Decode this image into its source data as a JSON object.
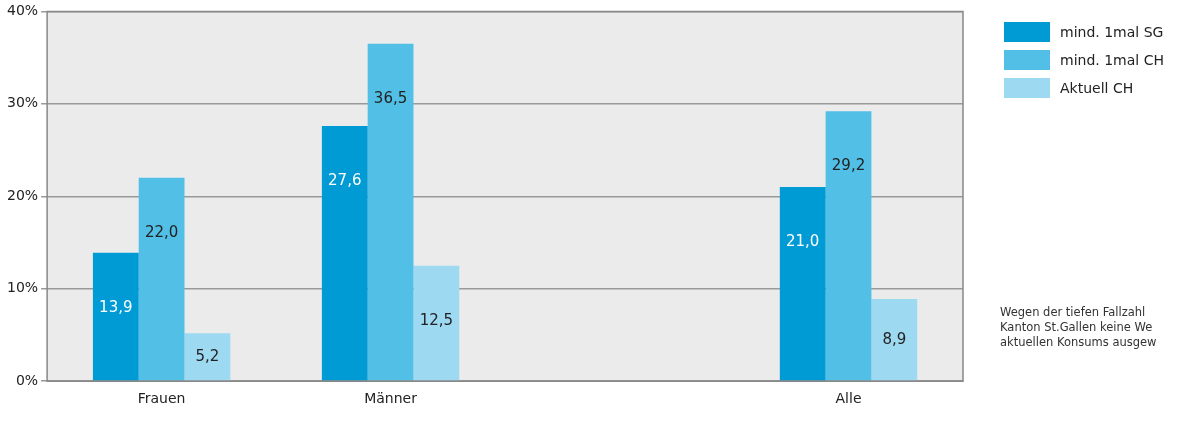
{
  "chart_data": {
    "type": "bar",
    "categories": [
      "Frauen",
      "Männer",
      null,
      "Alle"
    ],
    "series": [
      {
        "name": "mind. 1mal SG",
        "color": "#009ad4",
        "values": [
          13.9,
          27.6,
          null,
          21.0
        ],
        "value_labels": [
          "13,9",
          "27,6",
          null,
          "21,0"
        ]
      },
      {
        "name": "mind. 1mal CH",
        "color": "#52bfe6",
        "values": [
          22.0,
          36.5,
          null,
          29.2
        ],
        "value_labels": [
          "22,0",
          "36,5",
          null,
          "29,2"
        ]
      },
      {
        "name": "Aktuell CH",
        "color": "#9ed9f2",
        "values": [
          5.2,
          12.5,
          null,
          8.9
        ],
        "value_labels": [
          "5,2",
          "12,5",
          null,
          "8,9"
        ]
      }
    ],
    "ylim": [
      0,
      40
    ],
    "yticks": [
      {
        "value": 0,
        "label": "0%"
      },
      {
        "value": 10,
        "label": "10%"
      },
      {
        "value": 20,
        "label": "20%"
      },
      {
        "value": 30,
        "label": "30%"
      },
      {
        "value": 40,
        "label": "40%"
      }
    ],
    "grid": "y",
    "legend": "top right",
    "annotations": [
      "Wegen der tiefen Fallzahl",
      "Kanton St.Gallen keine We",
      "aktuellen Konsums ausgew"
    ]
  }
}
